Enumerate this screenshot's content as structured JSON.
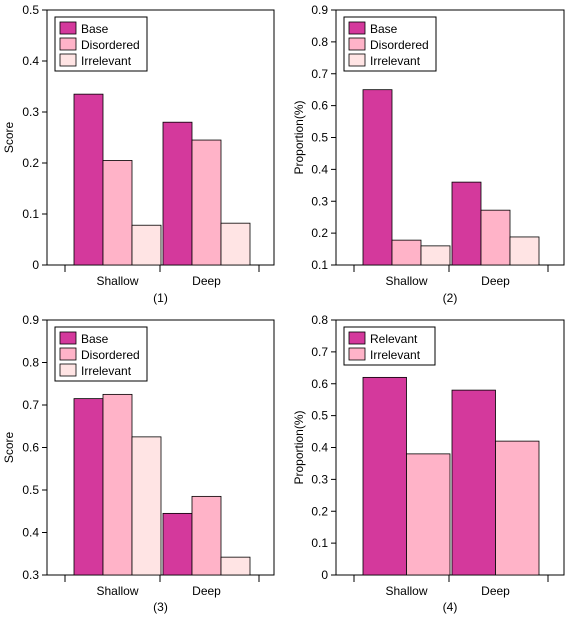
{
  "colors": {
    "base": "#d4399c",
    "disordered": "#ffb3c8",
    "irrelevant": "#ffe4e4",
    "relevant": "#d4399c",
    "irrelevant2": "#ffb3c8",
    "axis": "#000000"
  },
  "chart_data": [
    {
      "type": "bar",
      "caption": "(1)",
      "ylabel": "Score",
      "xlabel": "",
      "ylim": [
        0,
        0.5
      ],
      "yticks": [
        "0",
        "0.1",
        "0.2",
        "0.3",
        "0.4",
        "0.5"
      ],
      "categories": [
        "Shallow",
        "Deep"
      ],
      "legend": "top-left",
      "grid": false,
      "series": [
        {
          "name": "Base",
          "color_key": "base",
          "values": [
            0.335,
            0.28
          ]
        },
        {
          "name": "Disordered",
          "color_key": "disordered",
          "values": [
            0.205,
            0.245
          ]
        },
        {
          "name": "Irrelevant",
          "color_key": "irrelevant",
          "values": [
            0.078,
            0.082
          ]
        }
      ]
    },
    {
      "type": "bar",
      "caption": "(2)",
      "ylabel": "Proportion(%)",
      "xlabel": "",
      "ylim": [
        0.1,
        0.9
      ],
      "yticks": [
        "0.1",
        "0.2",
        "0.3",
        "0.4",
        "0.5",
        "0.6",
        "0.7",
        "0.8",
        "0.9"
      ],
      "categories": [
        "Shallow",
        "Deep"
      ],
      "legend": "top-left",
      "grid": false,
      "series": [
        {
          "name": "Base",
          "color_key": "base",
          "values": [
            0.65,
            0.36
          ]
        },
        {
          "name": "Disordered",
          "color_key": "disordered",
          "values": [
            0.178,
            0.272
          ]
        },
        {
          "name": "Irrelevant",
          "color_key": "irrelevant",
          "values": [
            0.16,
            0.188
          ]
        }
      ]
    },
    {
      "type": "bar",
      "caption": "(3)",
      "ylabel": "Score",
      "xlabel": "",
      "ylim": [
        0.3,
        0.9
      ],
      "yticks": [
        "0.3",
        "0.4",
        "0.5",
        "0.6",
        "0.7",
        "0.8",
        "0.9"
      ],
      "categories": [
        "Shallow",
        "Deep"
      ],
      "legend": "top-left",
      "grid": false,
      "series": [
        {
          "name": "Base",
          "color_key": "base",
          "values": [
            0.715,
            0.445
          ]
        },
        {
          "name": "Disordered",
          "color_key": "disordered",
          "values": [
            0.725,
            0.485
          ]
        },
        {
          "name": "Irrelevant",
          "color_key": "irrelevant",
          "values": [
            0.625,
            0.342
          ]
        }
      ]
    },
    {
      "type": "bar",
      "caption": "(4)",
      "ylabel": "Proportion(%)",
      "xlabel": "",
      "ylim": [
        0,
        0.8
      ],
      "yticks": [
        "0",
        "0.1",
        "0.2",
        "0.3",
        "0.4",
        "0.5",
        "0.6",
        "0.7",
        "0.8"
      ],
      "categories": [
        "Shallow",
        "Deep"
      ],
      "legend": "top-left",
      "grid": false,
      "series": [
        {
          "name": "Relevant",
          "color_key": "relevant",
          "values": [
            0.62,
            0.58
          ]
        },
        {
          "name": "Irrelevant",
          "color_key": "irrelevant2",
          "values": [
            0.38,
            0.42
          ]
        }
      ]
    }
  ]
}
